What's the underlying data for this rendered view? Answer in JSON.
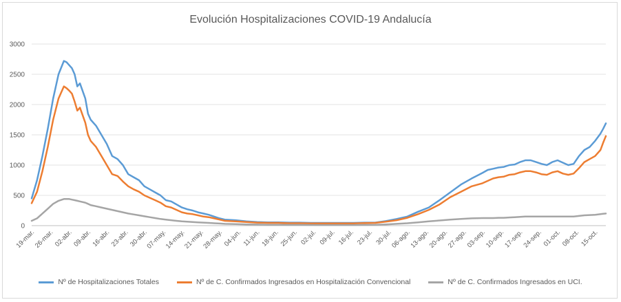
{
  "chart_data": {
    "type": "line",
    "title": "Evolución Hospitalizaciones COVID-19 Andalucía",
    "xlabel": "",
    "ylabel": "",
    "ylim": [
      0,
      3000
    ],
    "yticks": [
      "0",
      "500",
      "1000",
      "1500",
      "2000",
      "2500",
      "3000"
    ],
    "xticks": [
      "19-mar.",
      "26-mar.",
      "02-abr.",
      "09-abr.",
      "16-abr.",
      "23-abr.",
      "30-abr.",
      "07-may.",
      "14-may.",
      "21-may.",
      "28-may.",
      "04-jun.",
      "11-jun.",
      "18-jun.",
      "25-jun.",
      "02-jul.",
      "09-jul.",
      "16-jul.",
      "23-jul.",
      "30-jul.",
      "06-ago.",
      "13-ago.",
      "20-ago.",
      "27-ago.",
      "03-sep.",
      "10-sep.",
      "17-sep.",
      "24-sep.",
      "01-oct.",
      "08-oct.",
      "15-oct."
    ],
    "grid": true,
    "legend": "bottom",
    "x_days": [
      0,
      2,
      4,
      6,
      8,
      10,
      12,
      13,
      14,
      15,
      16,
      17,
      18,
      20,
      21,
      22,
      24,
      26,
      28,
      30,
      32,
      34,
      36,
      38,
      40,
      42,
      44,
      46,
      48,
      50,
      52,
      54,
      56,
      58,
      60,
      62,
      64,
      66,
      68,
      70,
      72,
      76,
      80,
      84,
      88,
      92,
      96,
      100,
      104,
      108,
      112,
      116,
      120,
      124,
      128,
      132,
      136,
      140,
      144,
      148,
      152,
      156,
      160,
      164,
      168,
      170,
      172,
      174,
      176,
      178,
      180,
      182,
      184,
      186,
      188,
      190,
      192,
      194,
      196,
      198,
      200,
      202,
      204,
      206,
      208,
      210,
      212,
      213,
      214
    ],
    "series": [
      {
        "name": "Nº de Hospitalizaciones Totales",
        "color": "#5b9bd5",
        "values": [
          450,
          750,
          1150,
          1600,
          2100,
          2500,
          2720,
          2700,
          2650,
          2600,
          2500,
          2300,
          2350,
          2100,
          1850,
          1750,
          1650,
          1500,
          1350,
          1150,
          1100,
          1000,
          850,
          800,
          750,
          650,
          600,
          550,
          500,
          420,
          400,
          350,
          300,
          270,
          250,
          220,
          200,
          180,
          150,
          120,
          100,
          90,
          70,
          60,
          55,
          55,
          50,
          50,
          45,
          45,
          45,
          45,
          45,
          50,
          50,
          75,
          110,
          150,
          230,
          300,
          420,
          550,
          680,
          780,
          870,
          920,
          940,
          960,
          970,
          1000,
          1010,
          1050,
          1080,
          1080,
          1050,
          1020,
          1000,
          1050,
          1080,
          1040,
          1000,
          1020,
          1150,
          1250,
          1300,
          1400,
          1520,
          1600,
          1690
        ]
      },
      {
        "name": "Nº de C. Confirmados Ingresados en Hospitalización Convencional",
        "color": "#ed7d31",
        "values": [
          370,
          560,
          900,
          1300,
          1750,
          2100,
          2300,
          2270,
          2230,
          2180,
          2050,
          1900,
          1950,
          1700,
          1500,
          1400,
          1300,
          1150,
          1000,
          850,
          820,
          730,
          650,
          600,
          560,
          500,
          460,
          420,
          380,
          320,
          300,
          260,
          220,
          200,
          190,
          170,
          150,
          140,
          120,
          100,
          80,
          70,
          60,
          50,
          45,
          45,
          40,
          40,
          38,
          38,
          38,
          38,
          38,
          42,
          45,
          65,
          90,
          130,
          190,
          260,
          350,
          470,
          560,
          650,
          700,
          740,
          780,
          800,
          810,
          840,
          850,
          880,
          900,
          900,
          880,
          850,
          840,
          880,
          900,
          860,
          840,
          860,
          950,
          1050,
          1100,
          1150,
          1250,
          1370,
          1480
        ]
      },
      {
        "name": "Nº de C. Confirmados Ingresados en UCI.",
        "color": "#a5a5a5",
        "values": [
          80,
          120,
          200,
          280,
          360,
          410,
          440,
          440,
          440,
          430,
          420,
          410,
          400,
          380,
          360,
          340,
          320,
          300,
          280,
          260,
          240,
          220,
          200,
          185,
          170,
          155,
          140,
          125,
          110,
          100,
          90,
          80,
          70,
          65,
          60,
          55,
          50,
          45,
          40,
          35,
          30,
          25,
          20,
          18,
          15,
          14,
          13,
          12,
          11,
          10,
          10,
          10,
          10,
          12,
          14,
          20,
          30,
          40,
          55,
          70,
          85,
          100,
          110,
          120,
          125,
          125,
          125,
          130,
          130,
          135,
          140,
          145,
          150,
          150,
          150,
          150,
          150,
          150,
          150,
          150,
          150,
          150,
          160,
          170,
          175,
          180,
          190,
          195,
          200
        ]
      }
    ]
  }
}
